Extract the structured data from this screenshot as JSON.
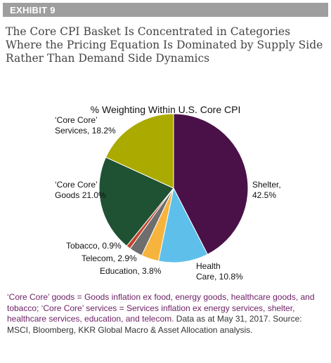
{
  "exhibit": "EXHIBIT 9",
  "headline_lines": [
    "The Core CPI Basket Is Concentrated in Categories",
    "Where the Pricing Equation Is Dominated by Supply Side",
    "Rather Than Demand Side Dynamics"
  ],
  "chart_data": {
    "type": "pie",
    "title": "% Weighting Within U.S. Core CPI",
    "slices": [
      {
        "name": "Shelter",
        "value": 42.5,
        "color": "#4a1148",
        "label_lines": [
          "Shelter,",
          "42.5%"
        ]
      },
      {
        "name": "Health Care",
        "value": 10.8,
        "color": "#5ec0ea",
        "label_lines": [
          "Health",
          "Care, 10.8%"
        ]
      },
      {
        "name": "Education",
        "value": 3.8,
        "color": "#f7b43d",
        "label_lines": [
          "Education, 3.8%"
        ]
      },
      {
        "name": "Telecom",
        "value": 2.9,
        "color": "#6e6e6e",
        "label_lines": [
          "Telecom, 2.9%"
        ]
      },
      {
        "name": "Tobacco",
        "value": 0.9,
        "color": "#c1442a",
        "label_lines": [
          "Tobacco, 0.9%"
        ]
      },
      {
        "name": "'Core Core' Goods",
        "value": 21.0,
        "color": "#1f5233",
        "label_lines": [
          "‘Core Core’",
          "Goods 21.0%"
        ]
      },
      {
        "name": "'Core Core' Services",
        "value": 18.2,
        "color": "#aaaa00",
        "label_lines": [
          "‘Core Core’",
          "Services, 18.2%"
        ]
      }
    ]
  },
  "footnote": {
    "highlight": "‘Core Core’ goods = Goods inflation ex food, energy goods, healthcare goods, and tobacco; ‘Core Core’ services = Services inflation ex energy services, shelter, healthcare services, education, and telecom.",
    "text": " Data as at May 31, 2017. Source: MSCI, Bloomberg, KKR Global Macro & Asset Allocation analysis."
  }
}
